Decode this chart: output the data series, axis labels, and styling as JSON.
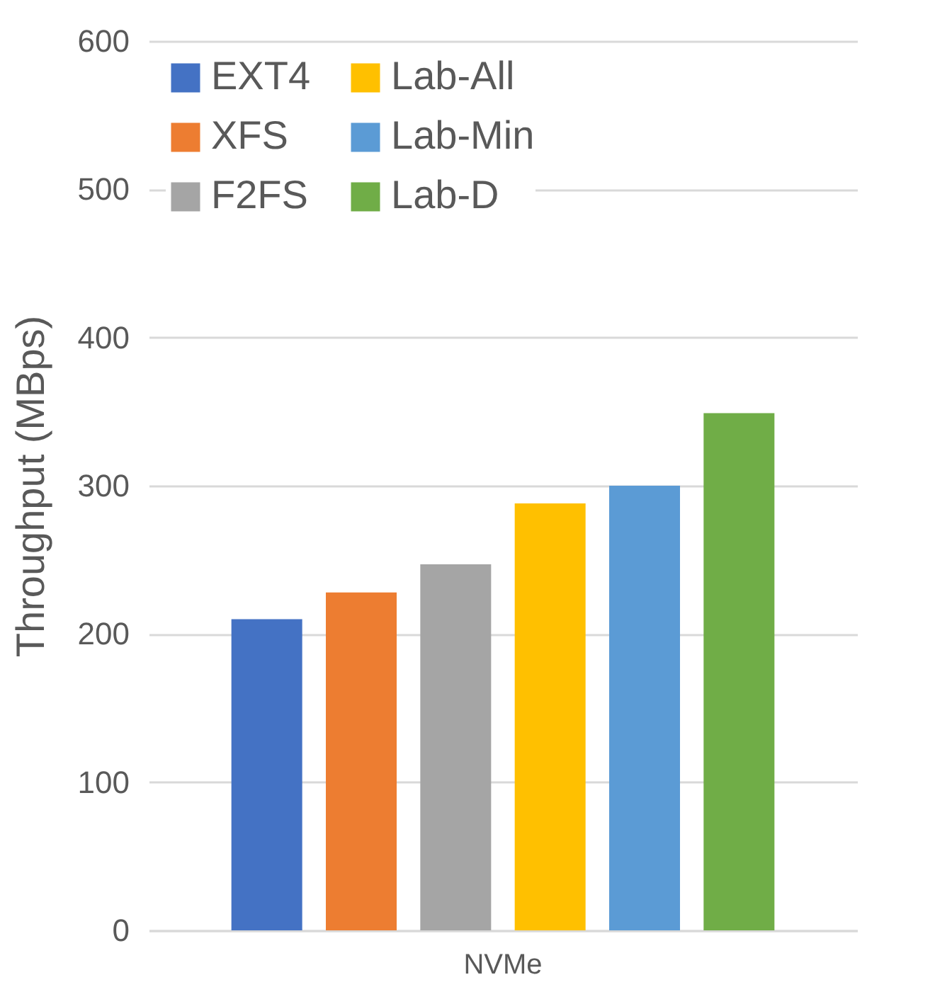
{
  "chart_data": {
    "type": "bar",
    "ylabel": "Throughput (MBps)",
    "categories": [
      "NVMe"
    ],
    "series": [
      {
        "name": "EXT4",
        "color": "#4472c4",
        "values": [
          210
        ]
      },
      {
        "name": "XFS",
        "color": "#ed7d31",
        "values": [
          228
        ]
      },
      {
        "name": "F2FS",
        "color": "#a5a5a5",
        "values": [
          247
        ]
      },
      {
        "name": "Lab-All",
        "color": "#ffc000",
        "values": [
          288
        ]
      },
      {
        "name": "Lab-Min",
        "color": "#5b9bd5",
        "values": [
          300
        ]
      },
      {
        "name": "Lab-D",
        "color": "#70ad47",
        "values": [
          349
        ]
      }
    ],
    "ylim": [
      0,
      600
    ],
    "yticks": [
      0,
      100,
      200,
      300,
      400,
      500,
      600
    ],
    "grid": "y",
    "legend": "top left"
  }
}
